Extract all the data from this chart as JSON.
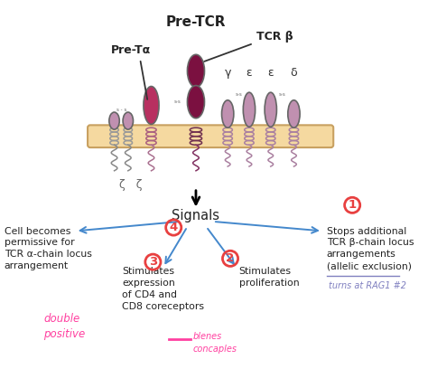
{
  "bg_color": "#ffffff",
  "membrane_color": "#f5d9a0",
  "membrane_border_color": "#c8a060",
  "dark_red": "#7B1040",
  "medium_red": "#B83060",
  "light_purple": "#C090B0",
  "blue_arrow_color": "#4488CC",
  "red_circle_color": "#E84040",
  "annotation_color_pink": "#FF40A0",
  "annotation_color_purple": "#8080C0",
  "title": "Pre-TCR",
  "pre_ta_label": "Pre-Tα",
  "tcr_b_label": "TCR β",
  "greek_labels": [
    "γ",
    "ε",
    "ε",
    "δ"
  ],
  "signals_label": "Signals",
  "signal1": "Stops additional\nTCR β-chain locus\narrangements\n(allelic exclusion)",
  "signal2": "Stimulates\nproliferation",
  "signal3": "Stimulates\nexpression\nof CD4 and\nCD8 coreceptors",
  "signal4": "Cell becomes\npermissive for\nTCR α-chain locus\narrangement",
  "note1": "turns at RAG1 #2",
  "note2": "double\npositive",
  "zeta_label": "ζ   ζ"
}
